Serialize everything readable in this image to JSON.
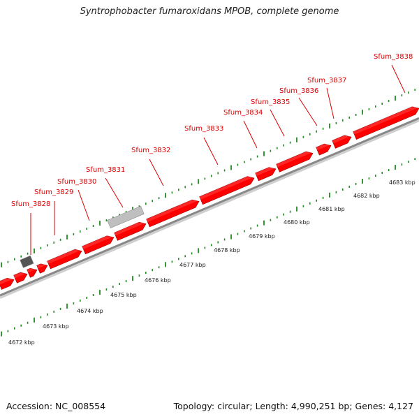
{
  "title": "Syntrophobacter fumaroxidans MPOB, complete genome",
  "footer": {
    "accession": "Accession: NC_008554",
    "summary": "Topology: circular; Length: 4,990,251 bp; Genes: 4,127"
  },
  "colors": {
    "gene_fill": "#ff0000",
    "gene_top": "#ff5555",
    "gene_shadow": "#990000",
    "backbone": "#888888",
    "label_text": "#dd0000",
    "tick_green": "#1f8a1f",
    "rna_gray": "#bfbfbf",
    "dark_gray": "#555555"
  },
  "gene_labels": [
    "Sfum_3828",
    "Sfum_3829",
    "Sfum_3830",
    "Sfum_3831",
    "Sfum_3832",
    "Sfum_3833",
    "Sfum_3834",
    "Sfum_3835",
    "Sfum_3836",
    "Sfum_3837",
    "Sfum_3838"
  ],
  "kbp_labels": [
    "4672 kbp",
    "4673 kbp",
    "4674 kbp",
    "4675 kbp",
    "4676 kbp",
    "4677 kbp",
    "4678 kbp",
    "4679 kbp",
    "4680 kbp",
    "4681 kbp",
    "4682 kbp",
    "4683 kbp"
  ]
}
